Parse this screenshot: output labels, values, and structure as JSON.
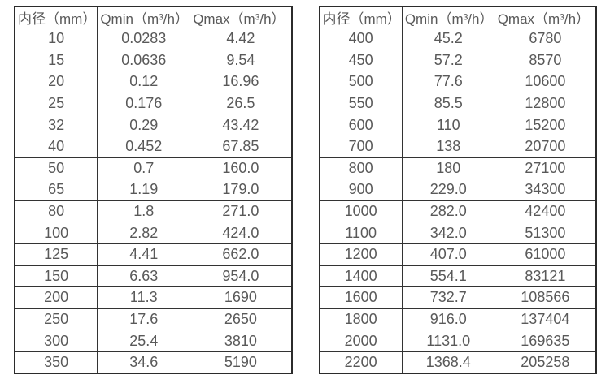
{
  "colors": {
    "text": "#595959",
    "border": "#333333",
    "outer_border": "#2b2b2b",
    "background": "#ffffff"
  },
  "tables": [
    {
      "name": "flow-rate-table-small-diameters",
      "headers": [
        "内径（mm）",
        "Qmin（m³/h）",
        "Qmax（m³/h）"
      ],
      "rows": [
        [
          "10",
          "0.0283",
          "4.42"
        ],
        [
          "15",
          "0.0636",
          "9.54"
        ],
        [
          "20",
          "0.12",
          "16.96"
        ],
        [
          "25",
          "0.176",
          "26.5"
        ],
        [
          "32",
          "0.29",
          "43.42"
        ],
        [
          "40",
          "0.452",
          "67.85"
        ],
        [
          "50",
          "0.7",
          "160.0"
        ],
        [
          "65",
          "1.19",
          "179.0"
        ],
        [
          "80",
          "1.8",
          "271.0"
        ],
        [
          "100",
          "2.82",
          "424.0"
        ],
        [
          "125",
          "4.41",
          "662.0"
        ],
        [
          "150",
          "6.63",
          "954.0"
        ],
        [
          "200",
          "11.3",
          "1690"
        ],
        [
          "250",
          "17.6",
          "2650"
        ],
        [
          "300",
          "25.4",
          "3810"
        ],
        [
          "350",
          "34.6",
          "5190"
        ]
      ]
    },
    {
      "name": "flow-rate-table-large-diameters",
      "headers": [
        "内径（mm）",
        "Qmin（m³/h）",
        "Qmax（m³/h）"
      ],
      "rows": [
        [
          "400",
          "45.2",
          "6780"
        ],
        [
          "450",
          "57.2",
          "8570"
        ],
        [
          "500",
          "77.6",
          "10600"
        ],
        [
          "550",
          "85.5",
          "12800"
        ],
        [
          "600",
          "110",
          "15200"
        ],
        [
          "700",
          "138",
          "20700"
        ],
        [
          "800",
          "180",
          "27100"
        ],
        [
          "900",
          "229.0",
          "34300"
        ],
        [
          "1000",
          "282.0",
          "42400"
        ],
        [
          "1100",
          "342.0",
          "51300"
        ],
        [
          "1200",
          "407.0",
          "61000"
        ],
        [
          "1400",
          "554.1",
          "83121"
        ],
        [
          "1600",
          "732.7",
          "108566"
        ],
        [
          "1800",
          "916.0",
          "137404"
        ],
        [
          "2000",
          "1131.0",
          "169635"
        ],
        [
          "2200",
          "1368.4",
          "205258"
        ]
      ]
    }
  ]
}
